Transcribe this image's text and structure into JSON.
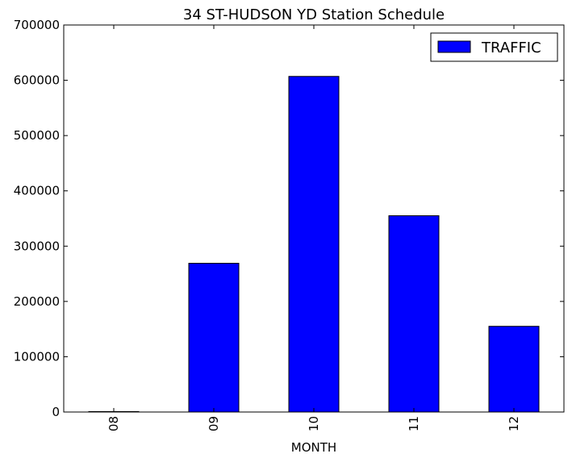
{
  "chart_data": {
    "type": "bar",
    "title": "34 ST-HUDSON YD Station Schedule",
    "xlabel": "MONTH",
    "ylabel": "",
    "categories": [
      "08",
      "09",
      "10",
      "11",
      "12"
    ],
    "series": [
      {
        "name": "TRAFFIC",
        "values": [
          800,
          269000,
          607000,
          355000,
          155000
        ]
      }
    ],
    "ylim": [
      0,
      700000
    ],
    "yticks": [
      "0",
      "100000",
      "200000",
      "300000",
      "400000",
      "500000",
      "600000",
      "700000"
    ],
    "bar_color": "#0000ff",
    "legend_position": "top-right",
    "grid": false
  }
}
